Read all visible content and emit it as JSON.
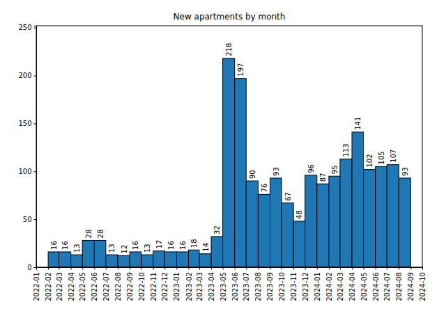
{
  "chart_data": {
    "type": "histogram",
    "title": "New apartments by month",
    "bins": [
      "2022-02",
      "2022-03",
      "2022-04",
      "2022-05",
      "2022-06",
      "2022-07",
      "2022-08",
      "2022-09",
      "2022-10",
      "2022-11",
      "2022-12",
      "2023-01",
      "2023-02",
      "2023-03",
      "2023-04",
      "2023-05",
      "2023-06",
      "2023-07",
      "2023-08",
      "2023-09",
      "2023-10",
      "2023-11",
      "2023-12",
      "2024-01",
      "2024-02",
      "2024-03",
      "2024-04",
      "2024-05",
      "2024-06",
      "2024-07",
      "2024-08",
      "2024-09"
    ],
    "values": [
      16,
      16,
      13,
      28,
      28,
      13,
      12,
      16,
      13,
      17,
      16,
      16,
      18,
      14,
      32,
      218,
      197,
      90,
      76,
      93,
      67,
      48,
      96,
      87,
      95,
      113,
      141,
      102,
      105,
      107,
      93
    ],
    "color": "#1f77b4",
    "xlim": [
      "2022-01",
      "2024-10"
    ],
    "xticks": [
      "2022-01",
      "2022-02",
      "2022-03",
      "2022-04",
      "2022-05",
      "2022-06",
      "2022-07",
      "2022-08",
      "2022-09",
      "2022-10",
      "2022-11",
      "2022-12",
      "2023-01",
      "2023-02",
      "2023-03",
      "2023-04",
      "2023-05",
      "2023-06",
      "2023-07",
      "2023-08",
      "2023-09",
      "2023-10",
      "2023-11",
      "2023-12",
      "2024-01",
      "2024-02",
      "2024-03",
      "2024-04",
      "2024-05",
      "2024-06",
      "2024-07",
      "2024-08",
      "2024-09",
      "2024-10"
    ],
    "ylim": [
      0,
      252
    ],
    "yticks": [
      0,
      50,
      100,
      150,
      200,
      250
    ],
    "data_labels": true,
    "grid": false
  }
}
